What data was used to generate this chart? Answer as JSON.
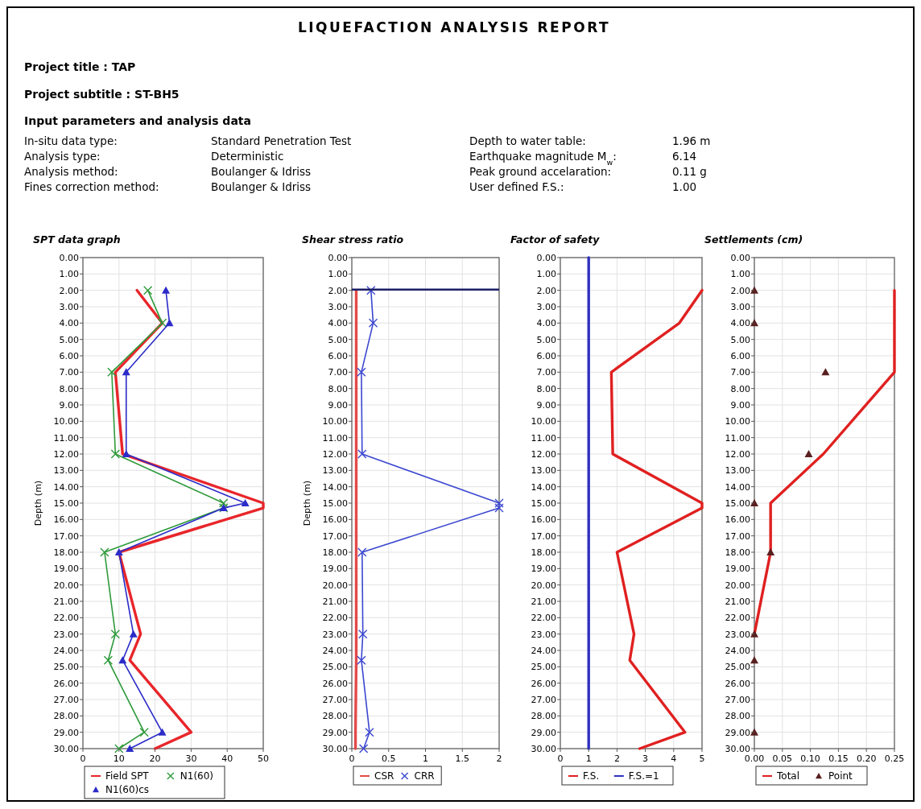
{
  "chart_data": [
    {
      "type": "other",
      "title": "LIQUEFACTION ANALYSIS REPORT",
      "annotations": [
        "Project title : TAP",
        "Project subtitle : ST-BH5",
        "Input parameters and analysis data",
        "In-situ data type:",
        "Standard Penetration Test",
        "Depth to water table:",
        "1.96 m",
        "Analysis type:",
        "Deterministic",
        "Earthquake magnitude M$_{w}$:",
        "6.14",
        "Analysis method:",
        "Boulanger & Idriss",
        "Peak ground accelaration:",
        "0.11 g",
        "Fines correction method:",
        "Boulanger & Idriss",
        "User defined F.S.:",
        "1.00"
      ]
    },
    {
      "type": "line",
      "title": "SPT data graph",
      "ylabel": "Depth (m)",
      "xlim": [
        0,
        50
      ],
      "xticks": [
        0,
        10,
        20,
        30,
        40,
        50
      ],
      "ylim": [
        30,
        0
      ],
      "yticks": [
        {
          "value": 0,
          "label": "0.00"
        },
        {
          "value": 1,
          "label": "1.00"
        },
        {
          "value": 2,
          "label": "2.00"
        },
        {
          "value": 3,
          "label": "3.00"
        },
        {
          "value": 4,
          "label": "4.00"
        },
        {
          "value": 5,
          "label": "5.00"
        },
        {
          "value": 6,
          "label": "6.00"
        },
        {
          "value": 7,
          "label": "7.00"
        },
        {
          "value": 8,
          "label": "8.00"
        },
        {
          "value": 9,
          "label": "9.00"
        },
        {
          "value": 10,
          "label": "10.00"
        },
        {
          "value": 11,
          "label": "11.00"
        },
        {
          "value": 12,
          "label": "12.00"
        },
        {
          "value": 13,
          "label": "13.00"
        },
        {
          "value": 14,
          "label": "14.00"
        },
        {
          "value": 15,
          "label": "15.00"
        },
        {
          "value": 16,
          "label": "16.00"
        },
        {
          "value": 17,
          "label": "17.00"
        },
        {
          "value": 18,
          "label": "18.00"
        },
        {
          "value": 19,
          "label": "19.00"
        },
        {
          "value": 20,
          "label": "20.00"
        },
        {
          "value": 21,
          "label": "21.00"
        },
        {
          "value": 22,
          "label": "22.00"
        },
        {
          "value": 23,
          "label": "23.00"
        },
        {
          "value": 24,
          "label": "24.00"
        },
        {
          "value": 25,
          "label": "25.00"
        },
        {
          "value": 26,
          "label": "26.00"
        },
        {
          "value": 27,
          "label": "27.00"
        },
        {
          "value": 28,
          "label": "28.00"
        },
        {
          "value": 29,
          "label": "29.00"
        },
        {
          "value": 30,
          "label": "30.00"
        }
      ],
      "grid": true,
      "legend": "bottom",
      "series": [
        {
          "name": "Field SPT",
          "color": "#e8262b",
          "marker": "none",
          "x": [
            15,
            22,
            9,
            11,
            50,
            50,
            10,
            16,
            13,
            30,
            20
          ],
          "values": [
            2,
            4,
            7,
            12,
            15,
            15.3,
            18,
            23,
            24.6,
            29,
            30
          ]
        },
        {
          "name": "N1(60)",
          "color": "#2e9a3a",
          "marker": "cross",
          "x": [
            18,
            22,
            8,
            9,
            39,
            39,
            6,
            9,
            7,
            17,
            10
          ],
          "values": [
            2,
            4,
            7,
            12,
            15,
            15.3,
            18,
            23,
            24.6,
            29,
            30
          ]
        },
        {
          "name": "N1(60)cs",
          "color": "#2b2bc8",
          "marker": "triangle",
          "x": [
            23,
            24,
            12,
            12,
            45,
            39,
            10,
            14,
            11,
            22,
            13
          ],
          "values": [
            2,
            4,
            7,
            12,
            15,
            15.3,
            18,
            23,
            24.6,
            29,
            30
          ]
        }
      ]
    },
    {
      "type": "line",
      "title": "Shear stress ratio",
      "ylabel": "Depth (m)",
      "xlim": [
        0,
        2
      ],
      "xticks": [
        0,
        0.5,
        1,
        1.5,
        2
      ],
      "ylim": [
        30,
        0
      ],
      "yticks": [
        {
          "value": 0,
          "label": "0.00"
        },
        {
          "value": 1,
          "label": "1.00"
        },
        {
          "value": 2,
          "label": "2.00"
        },
        {
          "value": 3,
          "label": "3.00"
        },
        {
          "value": 4,
          "label": "4.00"
        },
        {
          "value": 5,
          "label": "5.00"
        },
        {
          "value": 6,
          "label": "6.00"
        },
        {
          "value": 7,
          "label": "7.00"
        },
        {
          "value": 8,
          "label": "8.00"
        },
        {
          "value": 9,
          "label": "9.00"
        },
        {
          "value": 10,
          "label": "10.00"
        },
        {
          "value": 11,
          "label": "11.00"
        },
        {
          "value": 12,
          "label": "12.00"
        },
        {
          "value": 13,
          "label": "13.00"
        },
        {
          "value": 14,
          "label": "14.00"
        },
        {
          "value": 15,
          "label": "15.00"
        },
        {
          "value": 16,
          "label": "16.00"
        },
        {
          "value": 17,
          "label": "17.00"
        },
        {
          "value": 18,
          "label": "18.00"
        },
        {
          "value": 19,
          "label": "19.00"
        },
        {
          "value": 20,
          "label": "20.00"
        },
        {
          "value": 21,
          "label": "21.00"
        },
        {
          "value": 22,
          "label": "22.00"
        },
        {
          "value": 23,
          "label": "23.00"
        },
        {
          "value": 24,
          "label": "24.00"
        },
        {
          "value": 25,
          "label": "25.00"
        },
        {
          "value": 26,
          "label": "26.00"
        },
        {
          "value": 27,
          "label": "27.00"
        },
        {
          "value": 28,
          "label": "28.00"
        },
        {
          "value": 29,
          "label": "29.00"
        },
        {
          "value": 30,
          "label": "30.00"
        }
      ],
      "grid": true,
      "legend": "bottom",
      "ref_lines": [
        {
          "axis": "y",
          "value": 1.96,
          "color": "#1c1f66"
        }
      ],
      "series": [
        {
          "name": "CSR",
          "color": "#e34a4a",
          "marker": "none",
          "x": [
            0.06,
            0.06,
            0.06,
            0.06,
            0.06,
            0.06,
            0.06,
            0.06,
            0.06,
            0.05,
            0.05
          ],
          "values": [
            2,
            4,
            7,
            12,
            15,
            15.3,
            18,
            23,
            24.6,
            29,
            30
          ]
        },
        {
          "name": "CRR",
          "color": "#3b47d0",
          "marker": "cross",
          "x": [
            0.26,
            0.29,
            0.13,
            0.14,
            2,
            2,
            0.14,
            0.15,
            0.13,
            0.24,
            0.16
          ],
          "values": [
            2,
            4,
            7,
            12,
            15,
            15.3,
            18,
            23,
            24.6,
            29,
            30
          ]
        }
      ]
    },
    {
      "type": "line",
      "title": "Factor of safety",
      "xlim": [
        0,
        5
      ],
      "xticks": [
        0,
        1,
        2,
        3,
        4,
        5
      ],
      "ylim": [
        30,
        0
      ],
      "yticks": [
        {
          "value": 0,
          "label": "0.00"
        },
        {
          "value": 1,
          "label": "1.00"
        },
        {
          "value": 2,
          "label": "2.00"
        },
        {
          "value": 3,
          "label": "3.00"
        },
        {
          "value": 4,
          "label": "4.00"
        },
        {
          "value": 5,
          "label": "5.00"
        },
        {
          "value": 6,
          "label": "6.00"
        },
        {
          "value": 7,
          "label": "7.00"
        },
        {
          "value": 8,
          "label": "8.00"
        },
        {
          "value": 9,
          "label": "9.00"
        },
        {
          "value": 10,
          "label": "10.00"
        },
        {
          "value": 11,
          "label": "11.00"
        },
        {
          "value": 12,
          "label": "12.00"
        },
        {
          "value": 13,
          "label": "13.00"
        },
        {
          "value": 14,
          "label": "14.00"
        },
        {
          "value": 15,
          "label": "15.00"
        },
        {
          "value": 16,
          "label": "16.00"
        },
        {
          "value": 17,
          "label": "17.00"
        },
        {
          "value": 18,
          "label": "18.00"
        },
        {
          "value": 19,
          "label": "19.00"
        },
        {
          "value": 20,
          "label": "20.00"
        },
        {
          "value": 21,
          "label": "21.00"
        },
        {
          "value": 22,
          "label": "22.00"
        },
        {
          "value": 23,
          "label": "23.00"
        },
        {
          "value": 24,
          "label": "24.00"
        },
        {
          "value": 25,
          "label": "25.00"
        },
        {
          "value": 26,
          "label": "26.00"
        },
        {
          "value": 27,
          "label": "27.00"
        },
        {
          "value": 28,
          "label": "28.00"
        },
        {
          "value": 29,
          "label": "29.00"
        },
        {
          "value": 30,
          "label": "30.00"
        }
      ],
      "grid": true,
      "legend": "bottom",
      "series": [
        {
          "name": "F.S.",
          "color": "#e02020",
          "marker": "none",
          "x": [
            5,
            4.2,
            1.8,
            1.85,
            5,
            5,
            2,
            2.6,
            2.45,
            4.4,
            2.8
          ],
          "values": [
            2,
            4,
            7,
            12,
            15,
            15.3,
            18,
            23,
            24.6,
            29,
            30
          ]
        },
        {
          "name": "F.S.=1",
          "color": "#3030c0",
          "marker": "none",
          "x": [
            1,
            1
          ],
          "values": [
            0,
            30
          ]
        }
      ]
    },
    {
      "type": "line",
      "title": "Settlements (cm)",
      "xlim": [
        0,
        0.25
      ],
      "xticks": [
        {
          "value": 0,
          "label": "0.00"
        },
        {
          "value": 0.05,
          "label": "0.05"
        },
        {
          "value": 0.1,
          "label": "0.10"
        },
        {
          "value": 0.15,
          "label": "0.15"
        },
        {
          "value": 0.2,
          "label": "0.20"
        },
        {
          "value": 0.25,
          "label": "0.25"
        }
      ],
      "ylim": [
        30,
        0
      ],
      "yticks": [
        {
          "value": 0,
          "label": "0.00"
        },
        {
          "value": 1,
          "label": "1.00"
        },
        {
          "value": 2,
          "label": "2.00"
        },
        {
          "value": 3,
          "label": "3.00"
        },
        {
          "value": 4,
          "label": "4.00"
        },
        {
          "value": 5,
          "label": "5.00"
        },
        {
          "value": 6,
          "label": "6.00"
        },
        {
          "value": 7,
          "label": "7.00"
        },
        {
          "value": 8,
          "label": "8.00"
        },
        {
          "value": 9,
          "label": "9.00"
        },
        {
          "value": 10,
          "label": "10.00"
        },
        {
          "value": 11,
          "label": "11.00"
        },
        {
          "value": 12,
          "label": "12.00"
        },
        {
          "value": 13,
          "label": "13.00"
        },
        {
          "value": 14,
          "label": "14.00"
        },
        {
          "value": 15,
          "label": "15.00"
        },
        {
          "value": 16,
          "label": "16.00"
        },
        {
          "value": 17,
          "label": "17.00"
        },
        {
          "value": 18,
          "label": "18.00"
        },
        {
          "value": 19,
          "label": "19.00"
        },
        {
          "value": 20,
          "label": "20.00"
        },
        {
          "value": 21,
          "label": "21.00"
        },
        {
          "value": 22,
          "label": "22.00"
        },
        {
          "value": 23,
          "label": "23.00"
        },
        {
          "value": 24,
          "label": "24.00"
        },
        {
          "value": 25,
          "label": "25.00"
        },
        {
          "value": 26,
          "label": "26.00"
        },
        {
          "value": 27,
          "label": "27.00"
        },
        {
          "value": 28,
          "label": "28.00"
        },
        {
          "value": 29,
          "label": "29.00"
        },
        {
          "value": 30,
          "label": "30.00"
        }
      ],
      "grid": true,
      "legend": "bottom",
      "series": [
        {
          "name": "Total",
          "color": "#e02020",
          "marker": "none",
          "x": [
            0.25,
            0.25,
            0.123,
            0.029,
            0.029,
            0
          ],
          "values": [
            2,
            7,
            12,
            15,
            18,
            23
          ]
        },
        {
          "name": "Point",
          "type": "scatter",
          "color": "#5a1f1f",
          "marker": "triangle",
          "x": [
            0,
            0,
            0.127,
            0.097,
            0,
            0.029,
            0,
            0,
            0
          ],
          "values": [
            2,
            4,
            7,
            12,
            15,
            18,
            23,
            24.6,
            29
          ]
        }
      ]
    }
  ]
}
